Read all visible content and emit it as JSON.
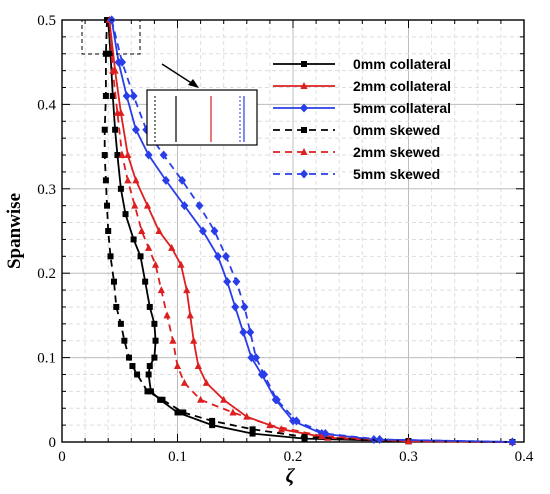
{
  "chart_data": {
    "type": "line",
    "xlabel": "ζ",
    "ylabel": "Spanwise",
    "xlim": [
      0,
      0.4
    ],
    "ylim": [
      0,
      0.5
    ],
    "xticks": [
      "0",
      "0.1",
      "0.2",
      "0.3",
      "0.4"
    ],
    "yticks": [
      "0",
      "0.1",
      "0.2",
      "0.3",
      "0.4",
      "0.5"
    ],
    "grid": true,
    "legend_position": "top-right",
    "series": [
      {
        "name": "0mm collateral",
        "color": "#000000",
        "dash": "solid",
        "marker": "square",
        "points": [
          [
            0.04,
            0.5
          ],
          [
            0.042,
            0.46
          ],
          [
            0.044,
            0.41
          ],
          [
            0.046,
            0.37
          ],
          [
            0.048,
            0.34
          ],
          [
            0.051,
            0.3
          ],
          [
            0.055,
            0.27
          ],
          [
            0.062,
            0.24
          ],
          [
            0.068,
            0.22
          ],
          [
            0.072,
            0.19
          ],
          [
            0.076,
            0.16
          ],
          [
            0.08,
            0.14
          ],
          [
            0.081,
            0.12
          ],
          [
            0.08,
            0.1
          ],
          [
            0.076,
            0.09
          ],
          [
            0.075,
            0.08
          ],
          [
            0.077,
            0.06
          ],
          [
            0.085,
            0.05
          ],
          [
            0.1,
            0.035
          ],
          [
            0.13,
            0.02
          ],
          [
            0.165,
            0.01
          ],
          [
            0.21,
            0.004
          ],
          [
            0.3,
            0.001
          ],
          [
            0.39,
            0.0
          ]
        ]
      },
      {
        "name": "2mm collateral",
        "color": "#dd1f1f",
        "dash": "solid",
        "marker": "triangle",
        "points": [
          [
            0.041,
            0.5
          ],
          [
            0.046,
            0.44
          ],
          [
            0.051,
            0.39
          ],
          [
            0.057,
            0.34
          ],
          [
            0.064,
            0.31
          ],
          [
            0.074,
            0.28
          ],
          [
            0.084,
            0.25
          ],
          [
            0.095,
            0.23
          ],
          [
            0.103,
            0.21
          ],
          [
            0.108,
            0.18
          ],
          [
            0.111,
            0.15
          ],
          [
            0.114,
            0.12
          ],
          [
            0.118,
            0.09
          ],
          [
            0.125,
            0.07
          ],
          [
            0.14,
            0.05
          ],
          [
            0.16,
            0.03
          ],
          [
            0.19,
            0.015
          ],
          [
            0.23,
            0.005
          ],
          [
            0.3,
            0.001
          ],
          [
            0.39,
            0.0
          ]
        ]
      },
      {
        "name": "5mm collateral",
        "color": "#2a3ee8",
        "dash": "solid",
        "marker": "diamond",
        "points": [
          [
            0.043,
            0.5
          ],
          [
            0.049,
            0.45
          ],
          [
            0.056,
            0.41
          ],
          [
            0.064,
            0.37
          ],
          [
            0.075,
            0.34
          ],
          [
            0.09,
            0.31
          ],
          [
            0.106,
            0.28
          ],
          [
            0.122,
            0.25
          ],
          [
            0.135,
            0.22
          ],
          [
            0.143,
            0.19
          ],
          [
            0.15,
            0.16
          ],
          [
            0.157,
            0.13
          ],
          [
            0.164,
            0.1
          ],
          [
            0.173,
            0.08
          ],
          [
            0.185,
            0.05
          ],
          [
            0.2,
            0.025
          ],
          [
            0.225,
            0.01
          ],
          [
            0.27,
            0.003
          ],
          [
            0.39,
            0.0
          ]
        ]
      },
      {
        "name": "0mm skewed",
        "color": "#000000",
        "dash": "dashed",
        "marker": "square",
        "points": [
          [
            0.039,
            0.5
          ],
          [
            0.038,
            0.46
          ],
          [
            0.038,
            0.41
          ],
          [
            0.037,
            0.37
          ],
          [
            0.037,
            0.34
          ],
          [
            0.038,
            0.31
          ],
          [
            0.039,
            0.28
          ],
          [
            0.04,
            0.25
          ],
          [
            0.042,
            0.22
          ],
          [
            0.045,
            0.19
          ],
          [
            0.047,
            0.16
          ],
          [
            0.051,
            0.14
          ],
          [
            0.054,
            0.12
          ],
          [
            0.058,
            0.1
          ],
          [
            0.061,
            0.09
          ],
          [
            0.065,
            0.08
          ],
          [
            0.074,
            0.06
          ],
          [
            0.087,
            0.05
          ],
          [
            0.105,
            0.035
          ],
          [
            0.13,
            0.025
          ],
          [
            0.165,
            0.015
          ],
          [
            0.21,
            0.006
          ],
          [
            0.3,
            0.001
          ],
          [
            0.39,
            0.0
          ]
        ]
      },
      {
        "name": "2mm skewed",
        "color": "#dd1f1f",
        "dash": "dashed",
        "marker": "triangle",
        "points": [
          [
            0.041,
            0.5
          ],
          [
            0.044,
            0.44
          ],
          [
            0.048,
            0.39
          ],
          [
            0.052,
            0.34
          ],
          [
            0.057,
            0.31
          ],
          [
            0.063,
            0.28
          ],
          [
            0.069,
            0.25
          ],
          [
            0.075,
            0.23
          ],
          [
            0.081,
            0.21
          ],
          [
            0.086,
            0.18
          ],
          [
            0.091,
            0.15
          ],
          [
            0.096,
            0.12
          ],
          [
            0.1,
            0.09
          ],
          [
            0.106,
            0.07
          ],
          [
            0.12,
            0.05
          ],
          [
            0.148,
            0.035
          ],
          [
            0.18,
            0.02
          ],
          [
            0.225,
            0.007
          ],
          [
            0.3,
            0.001
          ],
          [
            0.39,
            0.0
          ]
        ]
      },
      {
        "name": "5mm skewed",
        "color": "#2a3ee8",
        "dash": "dashed",
        "marker": "diamond",
        "points": [
          [
            0.043,
            0.5
          ],
          [
            0.052,
            0.45
          ],
          [
            0.062,
            0.41
          ],
          [
            0.073,
            0.37
          ],
          [
            0.088,
            0.34
          ],
          [
            0.104,
            0.31
          ],
          [
            0.119,
            0.28
          ],
          [
            0.132,
            0.25
          ],
          [
            0.142,
            0.22
          ],
          [
            0.151,
            0.19
          ],
          [
            0.158,
            0.16
          ],
          [
            0.163,
            0.13
          ],
          [
            0.168,
            0.1
          ],
          [
            0.175,
            0.08
          ],
          [
            0.186,
            0.05
          ],
          [
            0.203,
            0.025
          ],
          [
            0.228,
            0.01
          ],
          [
            0.275,
            0.003
          ],
          [
            0.39,
            0.0
          ]
        ]
      }
    ]
  }
}
